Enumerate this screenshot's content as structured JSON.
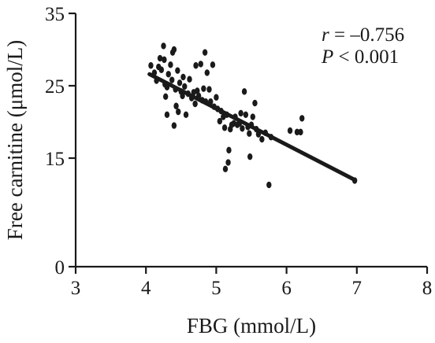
{
  "chart_data": {
    "type": "scatter",
    "title": "",
    "xlabel": "FBG (mmol/L)",
    "ylabel": "Free carnitine (μmol/L)",
    "xlim": [
      3,
      8
    ],
    "ylim": [
      0,
      35
    ],
    "xticks": [
      3,
      4,
      5,
      6,
      7,
      8
    ],
    "yticks": [
      0,
      15,
      25,
      35
    ],
    "grid": false,
    "annotations": {
      "r_symbol": "r",
      "r_text": " = –0.756",
      "p_symbol": "P",
      "p_text": " < 0.001"
    },
    "fit_line": {
      "x": [
        4.05,
        6.97
      ],
      "y": [
        26.6,
        12.0
      ]
    },
    "points": [
      {
        "x": 4.07,
        "y": 27.8
      },
      {
        "x": 4.12,
        "y": 26.8
      },
      {
        "x": 4.15,
        "y": 25.7
      },
      {
        "x": 4.18,
        "y": 27.6
      },
      {
        "x": 4.2,
        "y": 28.8
      },
      {
        "x": 4.22,
        "y": 27.2
      },
      {
        "x": 4.25,
        "y": 30.5
      },
      {
        "x": 4.26,
        "y": 28.6
      },
      {
        "x": 4.27,
        "y": 25.2
      },
      {
        "x": 4.28,
        "y": 23.5
      },
      {
        "x": 4.3,
        "y": 21.0
      },
      {
        "x": 4.3,
        "y": 24.8
      },
      {
        "x": 4.32,
        "y": 26.6
      },
      {
        "x": 4.35,
        "y": 27.9
      },
      {
        "x": 4.37,
        "y": 25.8
      },
      {
        "x": 4.38,
        "y": 29.6
      },
      {
        "x": 4.4,
        "y": 30.0
      },
      {
        "x": 4.4,
        "y": 19.5
      },
      {
        "x": 4.42,
        "y": 24.5
      },
      {
        "x": 4.43,
        "y": 22.2
      },
      {
        "x": 4.45,
        "y": 27.1
      },
      {
        "x": 4.46,
        "y": 21.4
      },
      {
        "x": 4.48,
        "y": 25.4
      },
      {
        "x": 4.5,
        "y": 24.2
      },
      {
        "x": 4.52,
        "y": 23.6
      },
      {
        "x": 4.53,
        "y": 26.2
      },
      {
        "x": 4.55,
        "y": 24.9
      },
      {
        "x": 4.57,
        "y": 21.0
      },
      {
        "x": 4.6,
        "y": 23.9
      },
      {
        "x": 4.62,
        "y": 25.9
      },
      {
        "x": 4.65,
        "y": 23.3
      },
      {
        "x": 4.68,
        "y": 24.1
      },
      {
        "x": 4.7,
        "y": 22.5
      },
      {
        "x": 4.71,
        "y": 27.8
      },
      {
        "x": 4.73,
        "y": 24.3
      },
      {
        "x": 4.75,
        "y": 23.6
      },
      {
        "x": 4.78,
        "y": 28.0
      },
      {
        "x": 4.8,
        "y": 23.0
      },
      {
        "x": 4.82,
        "y": 24.6
      },
      {
        "x": 4.84,
        "y": 29.6
      },
      {
        "x": 4.85,
        "y": 22.8
      },
      {
        "x": 4.87,
        "y": 26.8
      },
      {
        "x": 4.9,
        "y": 24.5
      },
      {
        "x": 4.92,
        "y": 22.8
      },
      {
        "x": 4.95,
        "y": 27.9
      },
      {
        "x": 4.97,
        "y": 22.1
      },
      {
        "x": 5.0,
        "y": 23.4
      },
      {
        "x": 5.02,
        "y": 21.8
      },
      {
        "x": 5.05,
        "y": 20.1
      },
      {
        "x": 5.07,
        "y": 21.5
      },
      {
        "x": 5.1,
        "y": 20.7
      },
      {
        "x": 5.12,
        "y": 19.2
      },
      {
        "x": 5.13,
        "y": 13.5
      },
      {
        "x": 5.15,
        "y": 21.0
      },
      {
        "x": 5.17,
        "y": 14.4
      },
      {
        "x": 5.18,
        "y": 16.1
      },
      {
        "x": 5.2,
        "y": 19.0
      },
      {
        "x": 5.22,
        "y": 19.6
      },
      {
        "x": 5.25,
        "y": 19.8
      },
      {
        "x": 5.27,
        "y": 20.7
      },
      {
        "x": 5.3,
        "y": 19.6
      },
      {
        "x": 5.33,
        "y": 19.8
      },
      {
        "x": 5.35,
        "y": 21.2
      },
      {
        "x": 5.37,
        "y": 19.1
      },
      {
        "x": 5.4,
        "y": 24.2
      },
      {
        "x": 5.42,
        "y": 21.0
      },
      {
        "x": 5.45,
        "y": 19.3
      },
      {
        "x": 5.47,
        "y": 18.4
      },
      {
        "x": 5.48,
        "y": 15.2
      },
      {
        "x": 5.5,
        "y": 19.6
      },
      {
        "x": 5.52,
        "y": 20.7
      },
      {
        "x": 5.55,
        "y": 22.6
      },
      {
        "x": 5.57,
        "y": 19.0
      },
      {
        "x": 5.6,
        "y": 18.3
      },
      {
        "x": 5.65,
        "y": 17.6
      },
      {
        "x": 5.7,
        "y": 18.5
      },
      {
        "x": 5.75,
        "y": 11.3
      },
      {
        "x": 5.78,
        "y": 17.9
      },
      {
        "x": 6.05,
        "y": 18.8
      },
      {
        "x": 6.15,
        "y": 18.6
      },
      {
        "x": 6.2,
        "y": 18.6
      },
      {
        "x": 6.22,
        "y": 20.5
      },
      {
        "x": 6.97,
        "y": 11.9
      }
    ]
  }
}
